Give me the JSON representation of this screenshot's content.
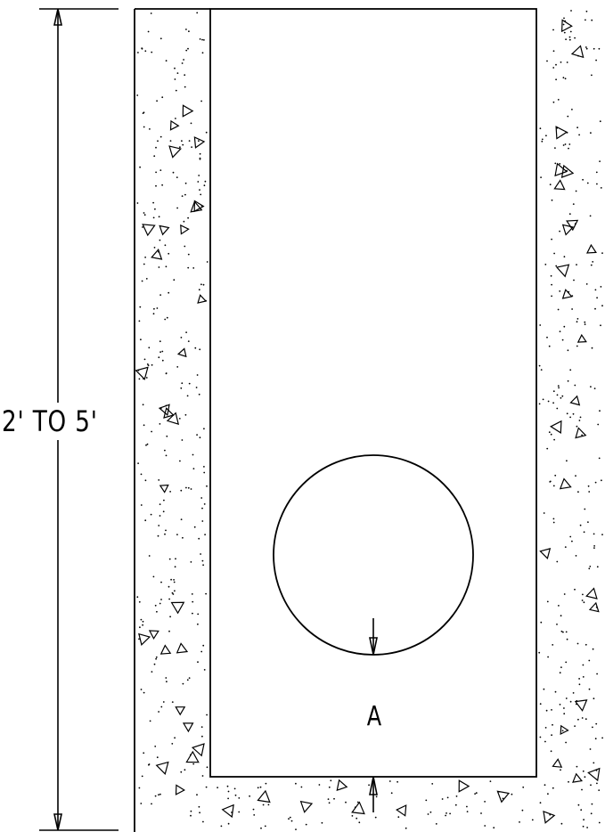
{
  "dimension": {
    "label": "2' TO 5'"
  },
  "pipe": {
    "point_label": "A"
  },
  "colors": {
    "line": "#000000",
    "background": "#ffffff"
  },
  "fill_pattern": "concrete-stipple"
}
